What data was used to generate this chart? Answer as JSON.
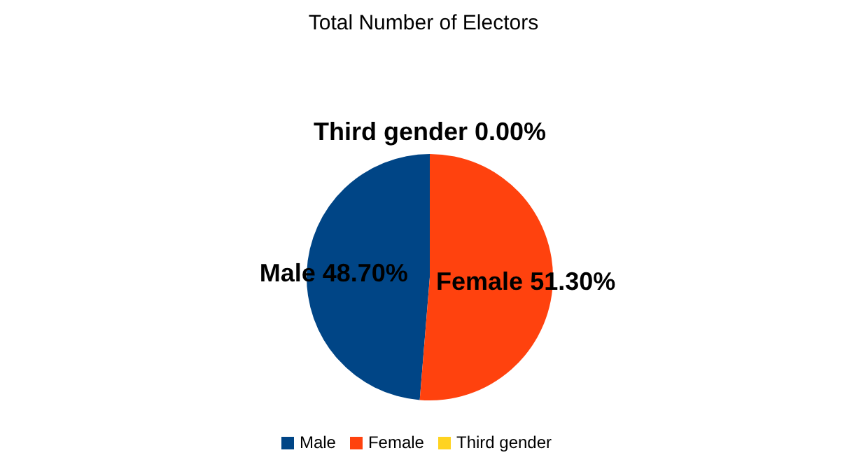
{
  "chart_data": {
    "type": "pie",
    "title": "Total Number of Electors",
    "categories": [
      "Male",
      "Female",
      "Third gender"
    ],
    "values": [
      48.7,
      51.3,
      0.0
    ],
    "colors": [
      "#004586",
      "#ff420e",
      "#ffd320"
    ],
    "value_labels": [
      "Male 48.70%",
      "Female 51.30%",
      "Third gender 0.00%"
    ],
    "legend": "bottom"
  }
}
